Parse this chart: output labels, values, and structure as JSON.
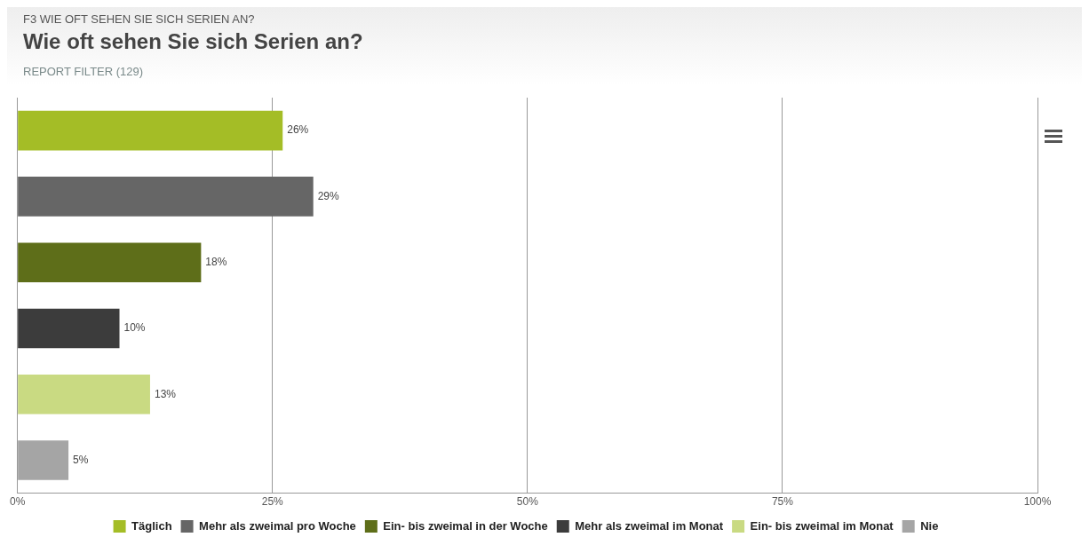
{
  "chart_data": {
    "type": "bar",
    "orientation": "horizontal",
    "title": "Wie oft sehen Sie sich Serien an?",
    "subtitle": "REPORT FILTER (129)",
    "annotations": [
      "F3 WIE OFT SEHEN SIE SICH SERIEN AN?"
    ],
    "categories": [
      null,
      null,
      null,
      null,
      null,
      null
    ],
    "series": [
      {
        "name": "Täglich",
        "color": "#a4bd26",
        "values": [
          26,
          null,
          null,
          null,
          null,
          null
        ],
        "value_labels": [
          "26%",
          null,
          null,
          null,
          null,
          null
        ]
      },
      {
        "name": "Mehr als zweimal pro Woche",
        "color": "#666666",
        "values": [
          null,
          29,
          null,
          null,
          null,
          null
        ],
        "value_labels": [
          null,
          "29%",
          null,
          null,
          null,
          null
        ]
      },
      {
        "name": "Ein- bis zweimal in der Woche",
        "color": "#5e6e19",
        "values": [
          null,
          null,
          18,
          null,
          null,
          null
        ],
        "value_labels": [
          null,
          null,
          "18%",
          null,
          null,
          null
        ]
      },
      {
        "name": "Mehr als zweimal im Monat",
        "color": "#3c3c3c",
        "values": [
          null,
          null,
          null,
          10,
          null,
          null
        ],
        "value_labels": [
          null,
          null,
          null,
          "10%",
          null,
          null
        ]
      },
      {
        "name": "Ein- bis zweimal im Monat",
        "color": "#c9da82",
        "values": [
          null,
          null,
          null,
          null,
          13,
          null
        ],
        "value_labels": [
          null,
          null,
          null,
          null,
          "13%",
          null
        ]
      },
      {
        "name": "Nie",
        "color": "#a5a5a5",
        "values": [
          null,
          null,
          null,
          null,
          null,
          5
        ],
        "value_labels": [
          null,
          null,
          null,
          null,
          null,
          "5%"
        ]
      }
    ],
    "xlim": [
      0,
      100
    ],
    "xticks": [
      {
        "value": 0,
        "label": "0%"
      },
      {
        "value": 25,
        "label": "25%"
      },
      {
        "value": 50,
        "label": "50%"
      },
      {
        "value": 75,
        "label": "75%"
      },
      {
        "value": 100,
        "label": "100%"
      }
    ],
    "grid": "x",
    "legend": "bottom"
  }
}
